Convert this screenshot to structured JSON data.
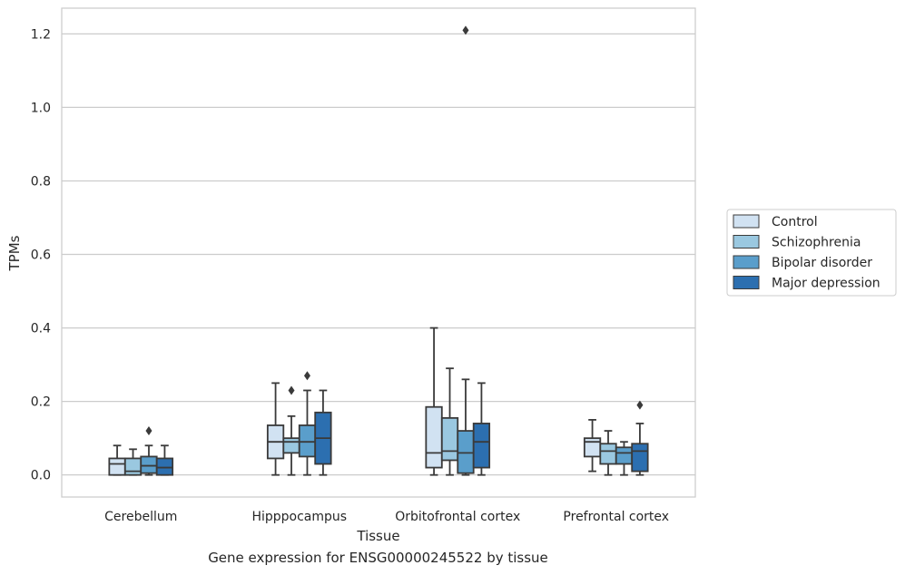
{
  "caption": "Gene expression for ENSG00000245522 by tissue",
  "chart_data": {
    "type": "box",
    "title": "",
    "xlabel": "Tissue",
    "ylabel": "TPMs",
    "ylim": [
      -0.06,
      1.27
    ],
    "yticks": [
      0.0,
      0.2,
      0.4,
      0.6,
      0.8,
      1.0,
      1.2
    ],
    "ytick_labels": [
      "0.0",
      "0.2",
      "0.4",
      "0.6",
      "0.8",
      "1.0",
      "1.2"
    ],
    "grid": "horizontal",
    "legend_position": "right",
    "categories": [
      "Cerebellum",
      "Hipppocampus",
      "Orbitofrontal cortex",
      "Prefrontal cortex"
    ],
    "series": [
      {
        "name": "Control",
        "color": "#d1e2f2",
        "boxes": [
          {
            "whislo": 0.0,
            "q1": 0.0,
            "med": 0.03,
            "q3": 0.045,
            "whishi": 0.08,
            "fliers": []
          },
          {
            "whislo": 0.0,
            "q1": 0.045,
            "med": 0.09,
            "q3": 0.135,
            "whishi": 0.25,
            "fliers": []
          },
          {
            "whislo": 0.0,
            "q1": 0.02,
            "med": 0.06,
            "q3": 0.185,
            "whishi": 0.4,
            "fliers": []
          },
          {
            "whislo": 0.01,
            "q1": 0.05,
            "med": 0.09,
            "q3": 0.1,
            "whishi": 0.15,
            "fliers": []
          }
        ]
      },
      {
        "name": "Schizophrenia",
        "color": "#9ac8e0",
        "boxes": [
          {
            "whislo": 0.0,
            "q1": 0.0,
            "med": 0.01,
            "q3": 0.045,
            "whishi": 0.07,
            "fliers": []
          },
          {
            "whislo": 0.0,
            "q1": 0.06,
            "med": 0.09,
            "q3": 0.1,
            "whishi": 0.16,
            "fliers": [
              0.23
            ]
          },
          {
            "whislo": 0.0,
            "q1": 0.04,
            "med": 0.065,
            "q3": 0.155,
            "whishi": 0.29,
            "fliers": []
          },
          {
            "whislo": 0.0,
            "q1": 0.03,
            "med": 0.065,
            "q3": 0.085,
            "whishi": 0.12,
            "fliers": []
          }
        ]
      },
      {
        "name": "Bipolar disorder",
        "color": "#5a9ecb",
        "boxes": [
          {
            "whislo": 0.0,
            "q1": 0.005,
            "med": 0.025,
            "q3": 0.05,
            "whishi": 0.08,
            "fliers": [
              0.12
            ]
          },
          {
            "whislo": 0.0,
            "q1": 0.05,
            "med": 0.09,
            "q3": 0.135,
            "whishi": 0.23,
            "fliers": [
              0.27
            ]
          },
          {
            "whislo": 0.0,
            "q1": 0.005,
            "med": 0.06,
            "q3": 0.12,
            "whishi": 0.26,
            "fliers": [
              1.21
            ]
          },
          {
            "whislo": 0.0,
            "q1": 0.03,
            "med": 0.06,
            "q3": 0.075,
            "whishi": 0.09,
            "fliers": []
          }
        ]
      },
      {
        "name": "Major depression",
        "color": "#2c6fb0",
        "boxes": [
          {
            "whislo": 0.0,
            "q1": 0.0,
            "med": 0.02,
            "q3": 0.045,
            "whishi": 0.08,
            "fliers": []
          },
          {
            "whislo": 0.0,
            "q1": 0.03,
            "med": 0.1,
            "q3": 0.17,
            "whishi": 0.23,
            "fliers": []
          },
          {
            "whislo": 0.0,
            "q1": 0.02,
            "med": 0.09,
            "q3": 0.14,
            "whishi": 0.25,
            "fliers": []
          },
          {
            "whislo": 0.0,
            "q1": 0.01,
            "med": 0.065,
            "q3": 0.085,
            "whishi": 0.14,
            "fliers": [
              0.19
            ]
          }
        ]
      }
    ]
  }
}
